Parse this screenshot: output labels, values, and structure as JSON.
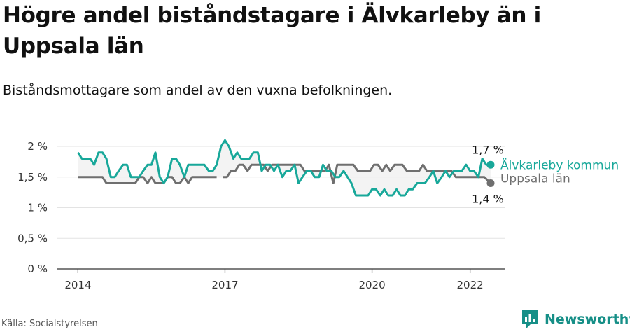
{
  "title": "Högre andel biståndstagare i Älvkarleby än i Uppsala län",
  "subtitle": "Biståndsmottagare som andel av den vuxna befolkningen.",
  "source": "Källa: Socialstyrelsen",
  "brand": "Newsworthy",
  "colors": {
    "kommun": "#18a89a",
    "lan": "#6f6f6f",
    "grid": "#e3e3e3",
    "axis": "#333333",
    "fill": "#eeeeee",
    "brand": "#168f87"
  },
  "chart_data": {
    "type": "line",
    "title": "Högre andel biståndstagare i Älvkarleby än i Uppsala län",
    "subtitle": "Biståndsmottagare som andel av den vuxna befolkningen.",
    "xlabel": "",
    "ylabel": "",
    "ylim": [
      0,
      2
    ],
    "xlim": [
      2013.58,
      2022.72
    ],
    "y_ticks": [
      0,
      0.5,
      1,
      1.5,
      2
    ],
    "y_tick_labels": [
      "0 %",
      "0,5 %",
      "1 %",
      "1,5 %",
      "2 %"
    ],
    "x_ticks": [
      2014,
      2017,
      2020,
      2022
    ],
    "x_tick_labels": [
      "2014",
      "2017",
      "2020",
      "2022"
    ],
    "grid": true,
    "legend": "end-of-line labels",
    "series": [
      {
        "name": "Älvkarleby kommun",
        "end_label": "1,7 %",
        "x": [
          2014.0,
          2014.08,
          2014.17,
          2014.25,
          2014.33,
          2014.42,
          2014.5,
          2014.58,
          2014.67,
          2014.75,
          2014.83,
          2014.92,
          2015.0,
          2015.08,
          2015.17,
          2015.25,
          2015.33,
          2015.42,
          2015.5,
          2015.58,
          2015.67,
          2015.75,
          2015.83,
          2015.92,
          2016.0,
          2016.08,
          2016.17,
          2016.25,
          2016.33,
          2016.42,
          2016.5,
          2016.58,
          2016.67,
          2016.75,
          2016.83,
          2016.92,
          2017.0,
          2017.08,
          2017.17,
          2017.25,
          2017.33,
          2017.42,
          2017.5,
          2017.58,
          2017.67,
          2017.75,
          2017.83,
          2017.92,
          2018.0,
          2018.08,
          2018.17,
          2018.25,
          2018.33,
          2018.42,
          2018.5,
          2018.58,
          2018.67,
          2018.75,
          2018.83,
          2018.92,
          2019.0,
          2019.08,
          2019.17,
          2019.25,
          2019.33,
          2019.42,
          2019.5,
          2019.58,
          2019.67,
          2019.75,
          2019.83,
          2019.92,
          2020.0,
          2020.08,
          2020.17,
          2020.25,
          2020.33,
          2020.42,
          2020.5,
          2020.58,
          2020.67,
          2020.75,
          2020.83,
          2020.92,
          2021.0,
          2021.08,
          2021.17,
          2021.25,
          2021.33,
          2021.42,
          2021.5,
          2021.58,
          2021.67,
          2021.75,
          2021.83,
          2021.92,
          2022.0,
          2022.08,
          2022.17,
          2022.25,
          2022.33,
          2022.42
        ],
        "y": [
          1.9,
          1.8,
          1.8,
          1.8,
          1.7,
          1.9,
          1.9,
          1.8,
          1.5,
          1.5,
          1.6,
          1.7,
          1.7,
          1.5,
          1.5,
          1.5,
          1.6,
          1.7,
          1.7,
          1.9,
          1.5,
          1.4,
          1.5,
          1.8,
          1.8,
          1.7,
          1.5,
          1.7,
          1.7,
          1.7,
          1.7,
          1.7,
          1.6,
          1.6,
          1.7,
          2.0,
          2.1,
          2.0,
          1.8,
          1.9,
          1.8,
          1.8,
          1.8,
          1.9,
          1.9,
          1.6,
          1.7,
          1.7,
          1.6,
          1.7,
          1.5,
          1.6,
          1.6,
          1.7,
          1.4,
          1.5,
          1.6,
          1.6,
          1.5,
          1.5,
          1.7,
          1.6,
          1.6,
          1.5,
          1.5,
          1.6,
          1.5,
          1.4,
          1.2,
          1.2,
          1.2,
          1.2,
          1.3,
          1.3,
          1.2,
          1.3,
          1.2,
          1.2,
          1.3,
          1.2,
          1.2,
          1.3,
          1.3,
          1.4,
          1.4,
          1.4,
          1.5,
          1.6,
          1.4,
          1.5,
          1.6,
          1.5,
          1.6,
          1.6,
          1.6,
          1.7,
          1.6,
          1.6,
          1.5,
          1.8,
          1.7,
          1.7
        ]
      },
      {
        "name": "Uppsala län",
        "end_label": "1,4 %",
        "x": [
          2014.0,
          2014.08,
          2014.17,
          2014.25,
          2014.33,
          2014.42,
          2014.5,
          2014.58,
          2014.67,
          2014.75,
          2014.83,
          2014.92,
          2015.0,
          2015.08,
          2015.17,
          2015.25,
          2015.33,
          2015.42,
          2015.5,
          2015.58,
          2015.67,
          2015.75,
          2015.83,
          2015.92,
          2016.0,
          2016.08,
          2016.17,
          2016.25,
          2016.33,
          2016.42,
          2016.5,
          2016.58,
          2016.67,
          2016.75,
          2016.83,
          null,
          2016.96,
          2017.04,
          2017.12,
          2017.21,
          2017.29,
          2017.37,
          2017.46,
          2017.54,
          2017.62,
          2017.71,
          2017.79,
          2017.87,
          2017.96,
          2018.04,
          2018.12,
          2018.21,
          2018.29,
          2018.37,
          2018.46,
          2018.54,
          2018.62,
          2018.71,
          2018.79,
          2018.87,
          2018.96,
          2019.04,
          2019.12,
          2019.21,
          2019.29,
          2019.37,
          2019.46,
          2019.54,
          2019.62,
          2019.71,
          2019.79,
          2019.87,
          2019.96,
          2020.04,
          2020.12,
          2020.21,
          2020.29,
          2020.37,
          2020.46,
          2020.54,
          2020.62,
          2020.71,
          2020.79,
          2020.87,
          2020.96,
          2021.04,
          2021.12,
          2021.21,
          2021.29,
          2021.37,
          2021.46,
          2021.54,
          2021.62,
          2021.71,
          2021.79,
          2021.87,
          2021.96,
          2022.04,
          2022.12,
          2022.21,
          2022.29,
          2022.42
        ],
        "y": [
          1.5,
          1.5,
          1.5,
          1.5,
          1.5,
          1.5,
          1.5,
          1.4,
          1.4,
          1.4,
          1.4,
          1.4,
          1.4,
          1.4,
          1.4,
          1.5,
          1.5,
          1.4,
          1.5,
          1.4,
          1.4,
          1.4,
          1.5,
          1.5,
          1.4,
          1.4,
          1.5,
          1.4,
          1.5,
          1.5,
          1.5,
          1.5,
          1.5,
          1.5,
          1.5,
          null,
          1.5,
          1.5,
          1.6,
          1.6,
          1.7,
          1.7,
          1.6,
          1.7,
          1.7,
          1.7,
          1.7,
          1.6,
          1.7,
          1.7,
          1.7,
          1.7,
          1.7,
          1.7,
          1.7,
          1.7,
          1.6,
          1.6,
          1.6,
          1.6,
          1.6,
          1.6,
          1.7,
          1.4,
          1.7,
          1.7,
          1.7,
          1.7,
          1.7,
          1.6,
          1.6,
          1.6,
          1.6,
          1.7,
          1.7,
          1.6,
          1.7,
          1.6,
          1.7,
          1.7,
          1.7,
          1.6,
          1.6,
          1.6,
          1.6,
          1.7,
          1.6,
          1.6,
          1.6,
          1.6,
          1.6,
          1.6,
          1.6,
          1.5,
          1.5,
          1.5,
          1.5,
          1.5,
          1.5,
          1.5,
          1.5,
          1.4
        ]
      }
    ]
  }
}
